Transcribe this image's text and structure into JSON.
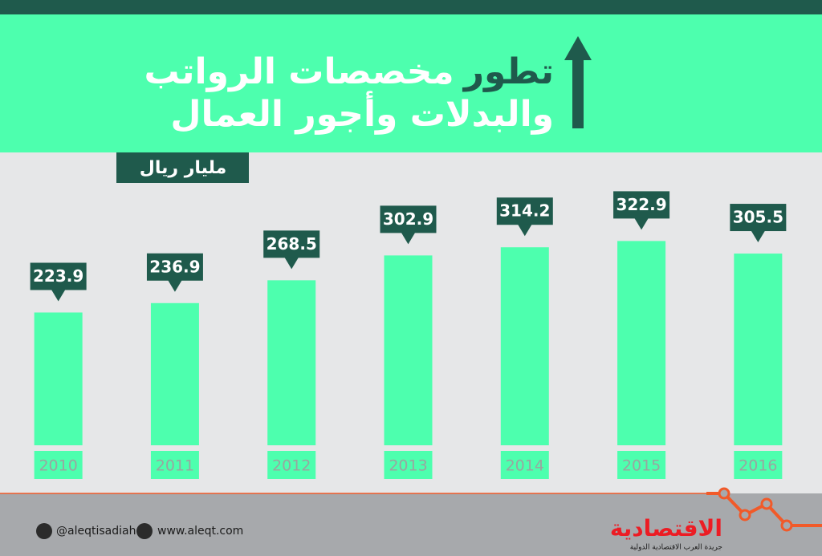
{
  "chart_data": {
    "type": "bar",
    "title": {
      "lead": "تطور",
      "rest": "مخصصات الرواتب",
      "line2": "والبدلات وأجور العمال"
    },
    "unit": "مليار ريال",
    "categories": [
      "2010",
      "2011",
      "2012",
      "2013",
      "2014",
      "2015",
      "2016"
    ],
    "values": [
      223.9,
      236.9,
      268.5,
      302.9,
      314.2,
      322.9,
      305.5
    ],
    "color": "#4dffae",
    "ylim": [
      40,
      340
    ]
  },
  "footer": {
    "twitter": "@aleqtisadiah",
    "website": "www.aleqt.com",
    "logo": "الاقتصادية",
    "tagline": "جريدة العرب الاقتصادية الدولية"
  }
}
